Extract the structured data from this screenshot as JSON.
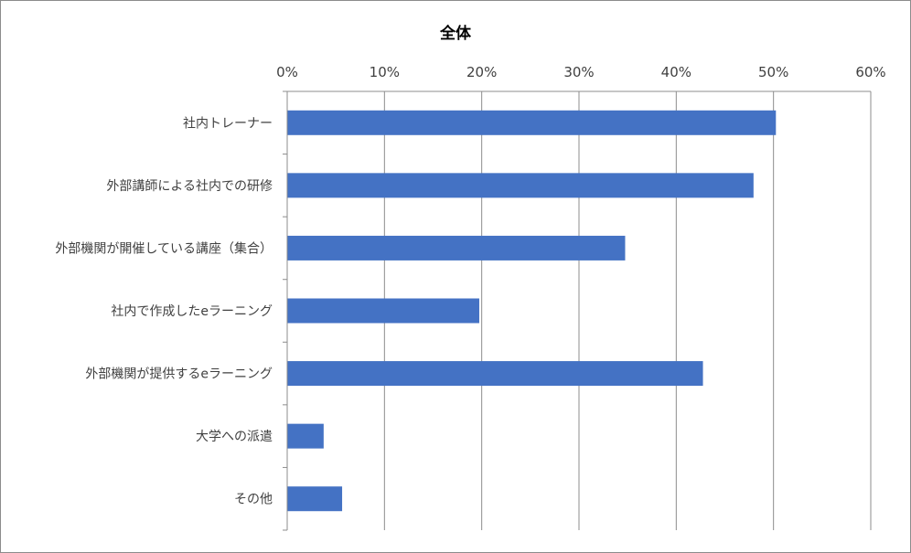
{
  "chart_data": {
    "type": "bar",
    "orientation": "horizontal",
    "title": "全体",
    "categories": [
      "社内トレーナー",
      "外部講師による社内での研修",
      "外部機関が開催している講座（集合）",
      "社内で作成したeラーニング",
      "外部機関が提供するeラーニング",
      "大学への派遣",
      "その他"
    ],
    "values": [
      50.2,
      47.9,
      34.7,
      19.7,
      42.7,
      3.7,
      5.6
    ],
    "value_unit": "%",
    "xlim": [
      0,
      60
    ],
    "xticks": [
      "0%",
      "10%",
      "20%",
      "30%",
      "40%",
      "50%",
      "60%"
    ],
    "x_axis_position": "top",
    "grid": true,
    "legend": false,
    "colors": {
      "bar": "#4472c4",
      "grid": "#8c8c8c",
      "text": "#404040"
    }
  }
}
